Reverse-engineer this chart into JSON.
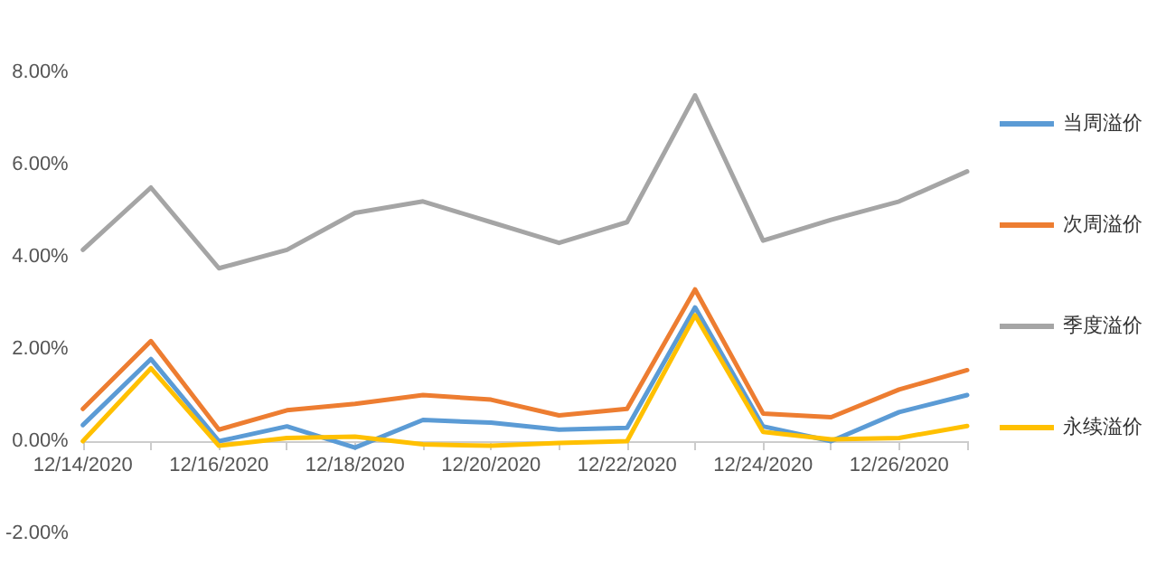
{
  "chart_data": {
    "type": "line",
    "categories": [
      "12/14/2020",
      null,
      "12/16/2020",
      null,
      "12/18/2020",
      null,
      "12/20/2020",
      null,
      "12/22/2020",
      null,
      "12/24/2020",
      null,
      "12/26/2020",
      null
    ],
    "series": [
      {
        "name": "当周溢价",
        "color": "#5b9bd5",
        "values": [
          0.35,
          1.78,
          0,
          0.32,
          -0.14,
          0.46,
          0.4,
          0.25,
          0.29,
          2.9,
          0.32,
          0,
          0.63,
          1.0
        ]
      },
      {
        "name": "次周溢价",
        "color": "#ed7d31",
        "values": [
          0.7,
          2.17,
          0.25,
          0.67,
          0.81,
          1.0,
          0.9,
          0.56,
          0.7,
          3.29,
          0.6,
          0.52,
          1.12,
          1.54
        ]
      },
      {
        "name": "季度溢价",
        "color": "#a5a5a5",
        "values": [
          4.15,
          5.5,
          3.75,
          4.15,
          4.95,
          5.2,
          4.75,
          4.3,
          4.75,
          7.5,
          4.35,
          4.8,
          5.2,
          5.85
        ]
      },
      {
        "name": "永续溢价",
        "color": "#ffc000",
        "values": [
          0,
          1.58,
          -0.1,
          0.07,
          0.1,
          -0.07,
          -0.1,
          -0.04,
          0,
          2.73,
          0.2,
          0.04,
          0.07,
          0.33
        ]
      }
    ],
    "ylim": [
      -2,
      8
    ],
    "yticks": [
      {
        "value": -2,
        "label": "-2.00%"
      },
      {
        "value": 0,
        "label": "0.00%"
      },
      {
        "value": 2,
        "label": "2.00%"
      },
      {
        "value": 4,
        "label": "4.00%"
      },
      {
        "value": 6,
        "label": "6.00%"
      },
      {
        "value": 8,
        "label": "8.00%"
      }
    ],
    "grid": false,
    "legend": "right",
    "marker": "none",
    "line_style": "solid"
  }
}
